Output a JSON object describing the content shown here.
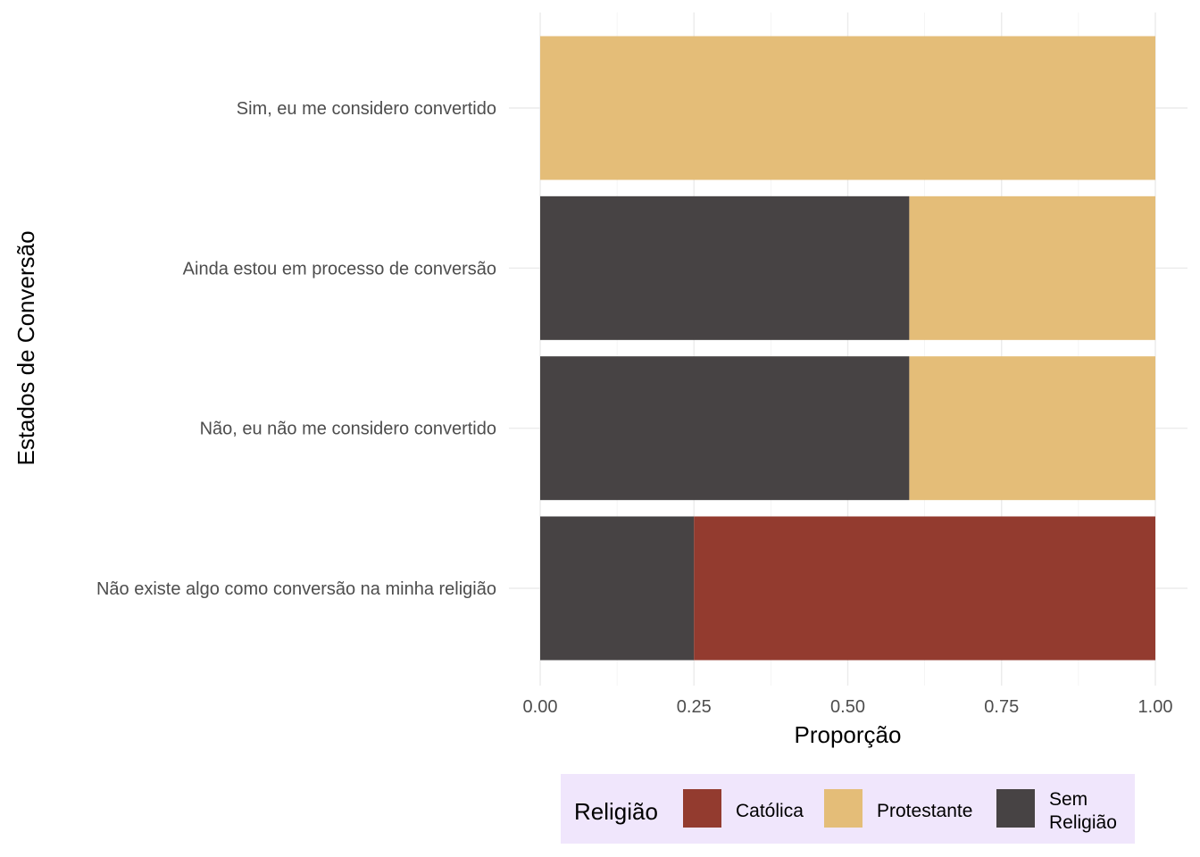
{
  "chart_data": {
    "type": "bar",
    "orientation": "horizontal",
    "stacked": true,
    "categories": [
      "Sim, eu me considero convertido",
      "Ainda estou em processo de conversão",
      "Não, eu não me considero convertido",
      "Não existe algo como conversão na minha religião"
    ],
    "series": [
      {
        "name": "Sem Religião",
        "legend_lines": [
          "Sem",
          "Religião"
        ],
        "color": "#474344",
        "values": [
          0,
          0.6,
          0.6,
          0.25
        ]
      },
      {
        "name": "Católica",
        "legend_lines": [
          "Católica"
        ],
        "color": "#933b2f",
        "values": [
          0,
          0,
          0,
          0.75
        ]
      },
      {
        "name": "Protestante",
        "legend_lines": [
          "Protestante"
        ],
        "color": "#e4bd78",
        "values": [
          1,
          0.4,
          0.4,
          0
        ]
      }
    ],
    "legend_order": [
      "Católica",
      "Protestante",
      "Sem Religião"
    ],
    "xlim": [
      0,
      1
    ],
    "xticks": [
      0,
      0.25,
      0.5,
      0.75,
      1
    ],
    "xtick_labels": [
      "0.00",
      "0.25",
      "0.50",
      "0.75",
      "1.00"
    ],
    "xlabel": "Proporção",
    "ylabel": "Estados de Conversão",
    "legend_title": "Religião",
    "legend_position": "bottom",
    "legend_background": "#f0e6fc",
    "grid": true
  }
}
